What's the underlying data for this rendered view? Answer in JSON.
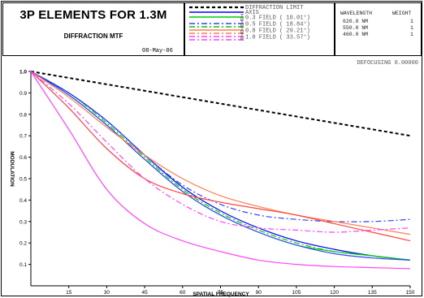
{
  "header": {
    "title": "3P ELEMENTS FOR 1.3M",
    "subtitle": "DIFFRACTION MTF",
    "date": "08-May-06"
  },
  "legend": {
    "entries": [
      {
        "label": "DIFFRACTION LIMIT",
        "color": "#000000",
        "dash": "dotted"
      },
      {
        "label": "AXIS",
        "color": "#0000ff",
        "dash": "solid"
      },
      {
        "label": "0.3 FIELD ( 10.01°)",
        "color": "#00cc00",
        "dash": "solid"
      },
      {
        "label": "0.5 FIELD ( 18.84°)",
        "color": "#3344ff",
        "dash": "dashdot"
      },
      {
        "label": "0.8 FIELD ( 29.21°)",
        "color": "#ff7f50",
        "dash": "solid"
      },
      {
        "label": "1.0 FIELD ( 33.57°)",
        "color": "#ff44ff",
        "dash": "dashdot"
      }
    ],
    "tr_labels": [
      "T",
      "R",
      "T",
      "R",
      "T",
      "R",
      "T",
      "R"
    ]
  },
  "wavelengths": {
    "header_wavelength": "WAVELENGTH",
    "header_weight": "WEIGHT",
    "rows": [
      {
        "wavelength": "620.0 NM",
        "weight": "1"
      },
      {
        "wavelength": "550.0 NM",
        "weight": "1"
      },
      {
        "wavelength": "460.0 NM",
        "weight": "1"
      }
    ]
  },
  "defocusing": "DEFOCUSING  0.00000",
  "chart_data": {
    "type": "line",
    "title": "DIFFRACTION MTF",
    "xlabel": "SPATIAL FREQUENCY",
    "ylabel": "MODULATION",
    "xlim": [
      0,
      150
    ],
    "ylim": [
      0,
      1.0
    ],
    "x_ticks": [
      "15",
      "30",
      "45",
      "60",
      "75",
      "90",
      "105",
      "120",
      "135",
      "150"
    ],
    "y_ticks": [
      "0.1",
      "0.2",
      "0.3",
      "0.4",
      "0.5",
      "0.6",
      "0.7",
      "0.8",
      "0.9",
      "1.0"
    ],
    "grid": false,
    "x": [
      0,
      15,
      30,
      45,
      60,
      75,
      90,
      105,
      120,
      135,
      150
    ],
    "series": [
      {
        "name": "DIFFRACTION LIMIT",
        "color": "#000000",
        "dash": "dotted",
        "values": [
          1.0,
          0.97,
          0.94,
          0.91,
          0.88,
          0.85,
          0.82,
          0.79,
          0.76,
          0.73,
          0.7
        ]
      },
      {
        "name": "AXIS",
        "color": "#0000ff",
        "dash": "solid",
        "values": [
          1.0,
          0.9,
          0.77,
          0.61,
          0.46,
          0.35,
          0.27,
          0.21,
          0.17,
          0.14,
          0.12
        ]
      },
      {
        "name": "0.3 FIELD T",
        "color": "#00cc00",
        "dash": "solid",
        "values": [
          1.0,
          0.89,
          0.75,
          0.59,
          0.44,
          0.33,
          0.25,
          0.19,
          0.16,
          0.14,
          0.12
        ]
      },
      {
        "name": "0.3 FIELD R",
        "color": "#00cc00",
        "dash": "dashdot",
        "values": [
          1.0,
          0.9,
          0.76,
          0.6,
          0.45,
          0.34,
          0.26,
          0.2,
          0.16,
          0.14,
          0.12
        ]
      },
      {
        "name": "0.5 FIELD T",
        "color": "#3344ff",
        "dash": "dashdot",
        "values": [
          1.0,
          0.9,
          0.77,
          0.61,
          0.47,
          0.38,
          0.33,
          0.31,
          0.3,
          0.3,
          0.31
        ]
      },
      {
        "name": "0.5 FIELD R",
        "color": "#3344ff",
        "dash": "solid",
        "values": [
          1.0,
          0.89,
          0.75,
          0.59,
          0.44,
          0.33,
          0.25,
          0.19,
          0.15,
          0.13,
          0.12
        ]
      },
      {
        "name": "0.8 FIELD T",
        "color": "#ff7f50",
        "dash": "solid",
        "values": [
          1.0,
          0.88,
          0.74,
          0.61,
          0.5,
          0.42,
          0.37,
          0.33,
          0.3,
          0.27,
          0.24
        ]
      },
      {
        "name": "0.8 FIELD R",
        "color": "#ff4444",
        "dash": "solid",
        "values": [
          1.0,
          0.83,
          0.64,
          0.5,
          0.43,
          0.39,
          0.36,
          0.33,
          0.29,
          0.25,
          0.21
        ]
      },
      {
        "name": "1.0 FIELD T",
        "color": "#ff44ff",
        "dash": "solid",
        "values": [
          1.0,
          0.73,
          0.45,
          0.29,
          0.21,
          0.16,
          0.12,
          0.1,
          0.09,
          0.085,
          0.08
        ]
      },
      {
        "name": "1.0 FIELD R",
        "color": "#ff44ff",
        "dash": "dashdot",
        "values": [
          1.0,
          0.85,
          0.67,
          0.5,
          0.38,
          0.3,
          0.27,
          0.26,
          0.25,
          0.26,
          0.27
        ]
      }
    ]
  }
}
